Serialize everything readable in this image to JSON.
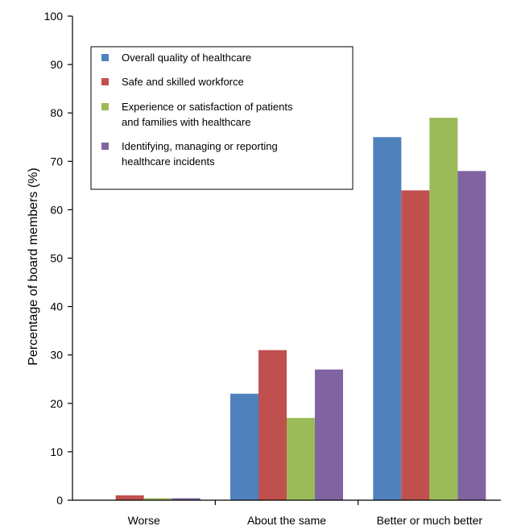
{
  "chart_data": {
    "type": "bar",
    "title": "",
    "xlabel": "",
    "ylabel": "Percentage of board members (%)",
    "ylim": [
      0,
      100
    ],
    "yticks": [
      0,
      10,
      20,
      30,
      40,
      50,
      60,
      70,
      80,
      90,
      100
    ],
    "categories": [
      "Worse",
      "About the same",
      "Better or much better"
    ],
    "series": [
      {
        "name": "Overall quality of healthcare",
        "color": "#4f81bd",
        "values": [
          0,
          22,
          75
        ]
      },
      {
        "name": "Safe and skilled workforce",
        "color": "#c0504d",
        "values": [
          1,
          31,
          64
        ]
      },
      {
        "name": "Experience or satisfaction of patients and families with healthcare",
        "color": "#9bbb59",
        "values": [
          0.4,
          17,
          79
        ]
      },
      {
        "name": "Identifying, managing or reporting healthcare incidents",
        "color": "#8064a2",
        "values": [
          0.4,
          27,
          68
        ]
      }
    ],
    "legend": {
      "position": "top-left",
      "entries": [
        [
          "Overall quality of healthcare"
        ],
        [
          "Safe and skilled workforce"
        ],
        [
          "Experience or satisfaction of patients",
          "and families with healthcare"
        ],
        [
          "Identifying, managing or reporting",
          "healthcare incidents"
        ]
      ]
    },
    "grid": false
  }
}
